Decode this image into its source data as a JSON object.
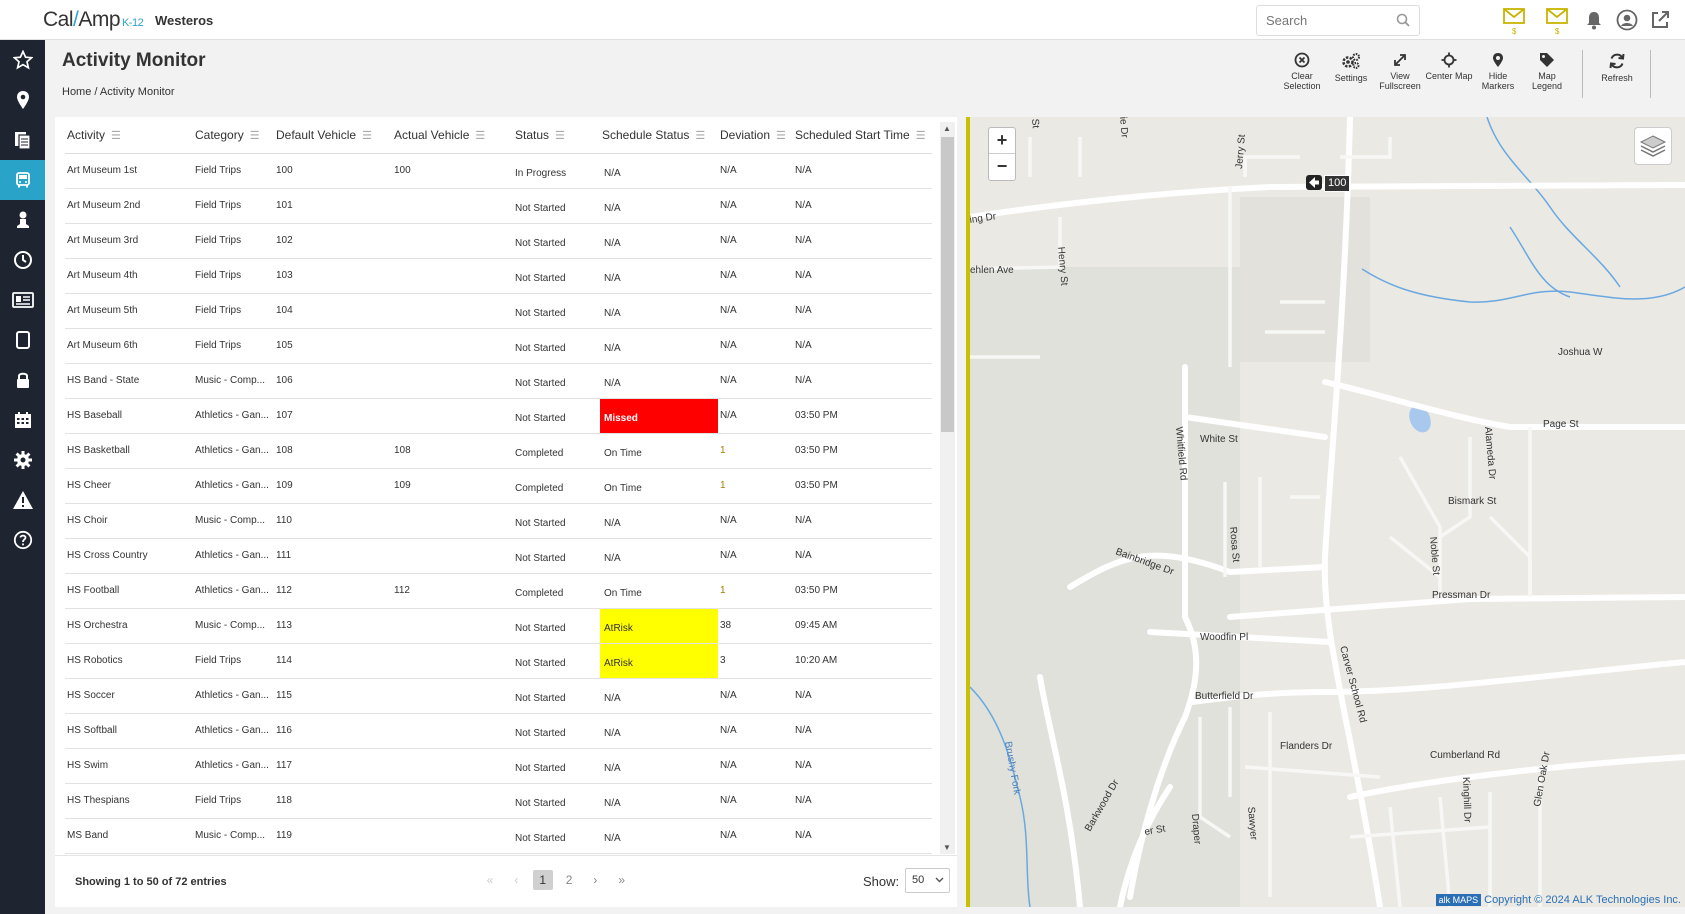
{
  "header": {
    "logo_main": "Cal",
    "logo_slash": "/",
    "logo_rest": "Amp",
    "logo_suffix": "K-12",
    "org_name": "Westeros",
    "search_placeholder": "Search",
    "mail_badge_1": "$",
    "mail_badge_2": "$"
  },
  "page": {
    "title": "Activity Monitor",
    "breadcrumb": "Home / Activity Monitor"
  },
  "toolbar": {
    "clear_selection": "Clear Selection",
    "settings": "Settings",
    "view_fullscreen": "View Fullscreen",
    "center_map": "Center Map",
    "hide_markers": "Hide Markers",
    "map_legend": "Map Legend",
    "refresh": "Refresh"
  },
  "grid": {
    "columns": [
      "Activity",
      "Category",
      "Default Vehicle",
      "Actual Vehicle",
      "Status",
      "Schedule Status",
      "Deviation",
      "Scheduled Start Time"
    ],
    "rows": [
      {
        "activity": "Art Museum 1st",
        "category": "Field Trips",
        "default_vehicle": "100",
        "actual_vehicle": "100",
        "status": "In Progress",
        "schedule_status": "N/A",
        "deviation": "N/A",
        "start": "N/A"
      },
      {
        "activity": "Art Museum 2nd",
        "category": "Field Trips",
        "default_vehicle": "101",
        "actual_vehicle": "",
        "status": "Not Started",
        "schedule_status": "N/A",
        "deviation": "N/A",
        "start": "N/A"
      },
      {
        "activity": "Art Museum 3rd",
        "category": "Field Trips",
        "default_vehicle": "102",
        "actual_vehicle": "",
        "status": "Not Started",
        "schedule_status": "N/A",
        "deviation": "N/A",
        "start": "N/A"
      },
      {
        "activity": "Art Museum 4th",
        "category": "Field Trips",
        "default_vehicle": "103",
        "actual_vehicle": "",
        "status": "Not Started",
        "schedule_status": "N/A",
        "deviation": "N/A",
        "start": "N/A"
      },
      {
        "activity": "Art Museum 5th",
        "category": "Field Trips",
        "default_vehicle": "104",
        "actual_vehicle": "",
        "status": "Not Started",
        "schedule_status": "N/A",
        "deviation": "N/A",
        "start": "N/A"
      },
      {
        "activity": "Art Museum 6th",
        "category": "Field Trips",
        "default_vehicle": "105",
        "actual_vehicle": "",
        "status": "Not Started",
        "schedule_status": "N/A",
        "deviation": "N/A",
        "start": "N/A"
      },
      {
        "activity": "HS Band - State",
        "category": "Music - Comp...",
        "default_vehicle": "106",
        "actual_vehicle": "",
        "status": "Not Started",
        "schedule_status": "N/A",
        "deviation": "N/A",
        "start": "N/A"
      },
      {
        "activity": "HS Baseball",
        "category": "Athletics - Gan...",
        "default_vehicle": "107",
        "actual_vehicle": "",
        "status": "Not Started",
        "schedule_status": "Missed",
        "deviation": "N/A",
        "start": "03:50 PM"
      },
      {
        "activity": "HS Basketball",
        "category": "Athletics - Gan...",
        "default_vehicle": "108",
        "actual_vehicle": "108",
        "status": "Completed",
        "schedule_status": "On Time",
        "deviation": "1",
        "start": "03:50 PM"
      },
      {
        "activity": "HS Cheer",
        "category": "Athletics - Gan...",
        "default_vehicle": "109",
        "actual_vehicle": "109",
        "status": "Completed",
        "schedule_status": "On Time",
        "deviation": "1",
        "start": "03:50 PM"
      },
      {
        "activity": "HS Choir",
        "category": "Music - Comp...",
        "default_vehicle": "110",
        "actual_vehicle": "",
        "status": "Not Started",
        "schedule_status": "N/A",
        "deviation": "N/A",
        "start": "N/A"
      },
      {
        "activity": "HS Cross Country",
        "category": "Athletics - Gan...",
        "default_vehicle": "111",
        "actual_vehicle": "",
        "status": "Not Started",
        "schedule_status": "N/A",
        "deviation": "N/A",
        "start": "N/A"
      },
      {
        "activity": "HS Football",
        "category": "Athletics - Gan...",
        "default_vehicle": "112",
        "actual_vehicle": "112",
        "status": "Completed",
        "schedule_status": "On Time",
        "deviation": "1",
        "start": "03:50 PM"
      },
      {
        "activity": "HS Orchestra",
        "category": "Music - Comp...",
        "default_vehicle": "113",
        "actual_vehicle": "",
        "status": "Not Started",
        "schedule_status": "AtRisk",
        "deviation": "38",
        "start": "09:45 AM"
      },
      {
        "activity": "HS Robotics",
        "category": "Field Trips",
        "default_vehicle": "114",
        "actual_vehicle": "",
        "status": "Not Started",
        "schedule_status": "AtRisk",
        "deviation": "3",
        "start": "10:20 AM"
      },
      {
        "activity": "HS Soccer",
        "category": "Athletics - Gan...",
        "default_vehicle": "115",
        "actual_vehicle": "",
        "status": "Not Started",
        "schedule_status": "N/A",
        "deviation": "N/A",
        "start": "N/A"
      },
      {
        "activity": "HS Softball",
        "category": "Athletics - Gan...",
        "default_vehicle": "116",
        "actual_vehicle": "",
        "status": "Not Started",
        "schedule_status": "N/A",
        "deviation": "N/A",
        "start": "N/A"
      },
      {
        "activity": "HS Swim",
        "category": "Athletics - Gan...",
        "default_vehicle": "117",
        "actual_vehicle": "",
        "status": "Not Started",
        "schedule_status": "N/A",
        "deviation": "N/A",
        "start": "N/A"
      },
      {
        "activity": "HS Thespians",
        "category": "Field Trips",
        "default_vehicle": "118",
        "actual_vehicle": "",
        "status": "Not Started",
        "schedule_status": "N/A",
        "deviation": "N/A",
        "start": "N/A"
      },
      {
        "activity": "MS Band",
        "category": "Music - Comp...",
        "default_vehicle": "119",
        "actual_vehicle": "",
        "status": "Not Started",
        "schedule_status": "N/A",
        "deviation": "N/A",
        "start": "N/A"
      }
    ]
  },
  "footer": {
    "showing": "Showing 1 to 50 of 72 entries",
    "pages": [
      "1",
      "2"
    ],
    "current_page": "1",
    "show_label": "Show:",
    "page_size": "50"
  },
  "map": {
    "vehicle_label": "100",
    "streets": [
      "Jerry St",
      "Henry St",
      "ing Dr",
      "ehlen Ave",
      "White St",
      "Whitfield Rd",
      "Rosa St",
      "Bainbridge Dr",
      "Woodfin Pl",
      "Butterfield Dr",
      "Flanders Dr",
      "Cumberland Rd",
      "Carver School Rd",
      "Alameda Dr",
      "Page St",
      "Bismark St",
      "Noble St",
      "Pressman Dr",
      "Kinghill Dr",
      "Joshua W",
      "Sawyer",
      "Draper",
      "Barkwood Dr",
      "Brushy Fork",
      "Glen Oak Dr",
      "ie Dr",
      "er St",
      "St"
    ],
    "zoom_in": "+",
    "zoom_out": "−",
    "credit_logo": "alk",
    "credit_maps": "MAPS",
    "copyright": "Copyright © 2024 ALK Technologies Inc."
  },
  "colors": {
    "accent": "#2aa3c8",
    "sidebar": "#1e2430",
    "missed": "#ff0000",
    "at_risk": "#ffff00",
    "mail_icon": "#c8b400"
  },
  "icons": {
    "sidebar": [
      "star-icon",
      "map-pin-icon",
      "documents-icon",
      "bus-icon",
      "person-icon",
      "clock-icon",
      "id-card-icon",
      "tablet-icon",
      "lock-icon",
      "calendar-icon",
      "gear-icon",
      "warning-icon",
      "help-icon"
    ]
  }
}
